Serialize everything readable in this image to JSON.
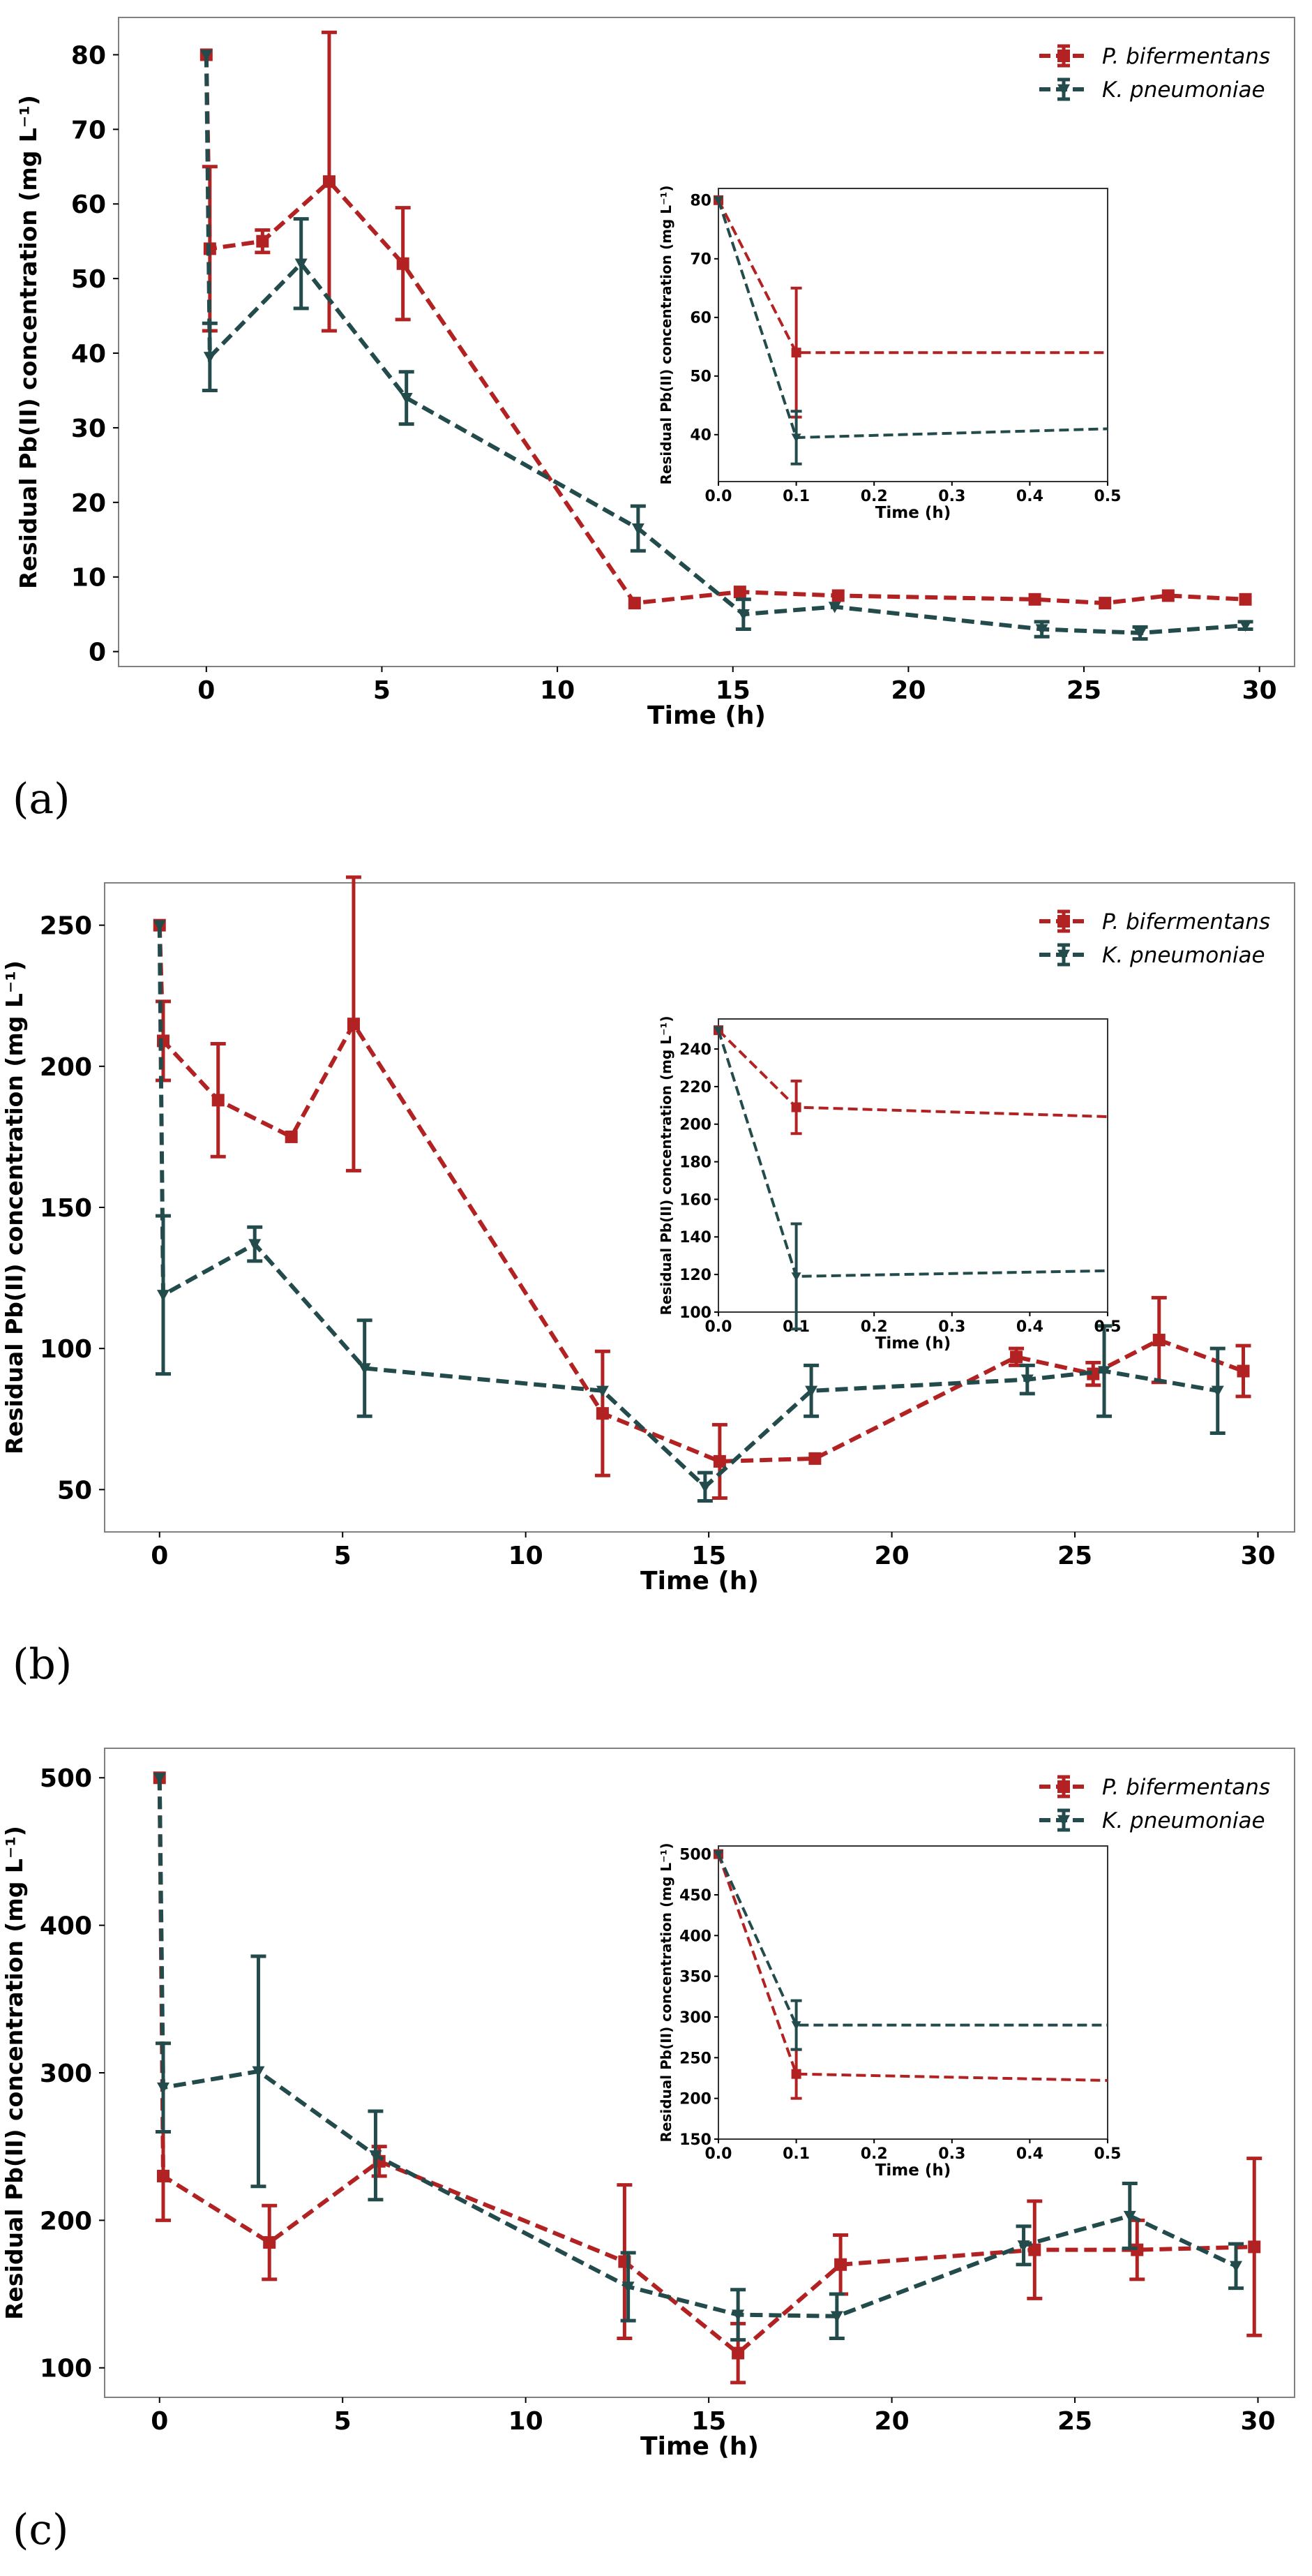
{
  "colors": {
    "pb": "#b22222",
    "kp": "#234b4b",
    "frame": "#808080"
  },
  "chart_data": [
    {
      "type": "line",
      "panel_label": "(a)",
      "xlabel": "Time (h)",
      "ylabel": "Residual Pb(II) concentration (mg L⁻¹)",
      "xlim": [
        -2.5,
        31
      ],
      "ylim": [
        -2,
        85
      ],
      "xticks": [
        0,
        5,
        10,
        15,
        20,
        25,
        30
      ],
      "yticks": [
        0,
        10,
        20,
        30,
        40,
        50,
        60,
        70,
        80
      ],
      "series": [
        {
          "name": "P. bifermentans",
          "marker": "square",
          "color": "#b22222",
          "x": [
            0,
            0.1,
            1.6,
            3.5,
            5.6,
            12.2,
            15.2,
            18,
            23.6,
            25.6,
            27.4,
            29.6
          ],
          "y": [
            80,
            54,
            55,
            63,
            52,
            6.5,
            8,
            7.5,
            7,
            6.5,
            7.5,
            7
          ],
          "err": [
            0,
            11,
            1.5,
            20,
            7.5,
            0,
            0,
            0,
            0,
            0,
            0,
            0
          ]
        },
        {
          "name": "K. pneumoniae",
          "marker": "triangle-down",
          "color": "#234b4b",
          "x": [
            0,
            0.1,
            2.7,
            5.7,
            12.3,
            15.3,
            17.9,
            23.8,
            26.6,
            29.6
          ],
          "y": [
            80,
            39.5,
            52,
            34,
            16.5,
            5,
            6,
            3,
            2.5,
            3.5
          ],
          "err": [
            0,
            4.5,
            6,
            3.5,
            3,
            2,
            0,
            1,
            0.8,
            0.5
          ]
        }
      ],
      "inset": {
        "xlabel": "Time (h)",
        "ylabel": "Residual Pb(II) concentration (mg L⁻¹)",
        "xlim": [
          0,
          0.5
        ],
        "ylim": [
          32,
          82
        ],
        "xticks": [
          "0.0",
          "0.1",
          "0.2",
          "0.3",
          "0.4",
          "0.5"
        ],
        "yticks": [
          40,
          50,
          60,
          70,
          80
        ],
        "series": [
          {
            "name": "P. bifermentans",
            "x": [
              0,
              0.1,
              0.5
            ],
            "y": [
              80,
              54,
              54
            ],
            "err": [
              0,
              11,
              0
            ]
          },
          {
            "name": "K. pneumoniae",
            "x": [
              0,
              0.1,
              0.5
            ],
            "y": [
              80,
              39.5,
              41
            ],
            "err": [
              0,
              4.5,
              0
            ]
          }
        ]
      }
    },
    {
      "type": "line",
      "panel_label": "(b)",
      "xlabel": "Time (h)",
      "ylabel": "Residual Pb(II) concentration (mg L⁻¹)",
      "xlim": [
        -1.5,
        31
      ],
      "ylim": [
        35,
        265
      ],
      "xticks": [
        0,
        5,
        10,
        15,
        20,
        25,
        30
      ],
      "yticks": [
        50,
        100,
        150,
        200,
        250
      ],
      "series": [
        {
          "name": "P. bifermentans",
          "marker": "square",
          "color": "#b22222",
          "x": [
            0,
            0.1,
            1.6,
            3.6,
            5.3,
            12.1,
            15.3,
            17.9,
            23.4,
            25.5,
            27.3,
            29.6
          ],
          "y": [
            250,
            209,
            188,
            175,
            215,
            77,
            60,
            61,
            97,
            91,
            103,
            92
          ],
          "err": [
            0,
            14,
            20,
            0,
            52,
            22,
            13,
            0,
            3,
            4,
            15,
            9
          ]
        },
        {
          "name": "K. pneumoniae",
          "marker": "triangle-down",
          "color": "#234b4b",
          "x": [
            0,
            0.1,
            2.6,
            5.6,
            12.1,
            14.9,
            17.8,
            23.7,
            25.8,
            28.9
          ],
          "y": [
            250,
            119,
            137,
            93,
            85,
            51,
            85,
            89,
            92,
            85
          ],
          "err": [
            0,
            28,
            6,
            17,
            0,
            5,
            9,
            5,
            16,
            15
          ]
        }
      ],
      "inset": {
        "xlabel": "Time (h)",
        "ylabel": "Residual Pb(II) concentration (mg L⁻¹)",
        "xlim": [
          0,
          0.5
        ],
        "ylim": [
          100,
          256
        ],
        "xticks": [
          "0.0",
          "0.1",
          "0.2",
          "0.3",
          "0.4",
          "0.5"
        ],
        "yticks": [
          100,
          120,
          140,
          160,
          180,
          200,
          220,
          240
        ],
        "series": [
          {
            "name": "P. bifermentans",
            "x": [
              0,
              0.1,
              0.5
            ],
            "y": [
              250,
              209,
              204
            ],
            "err": [
              0,
              14,
              0
            ]
          },
          {
            "name": "K. pneumoniae",
            "x": [
              0,
              0.1,
              0.5
            ],
            "y": [
              250,
              119,
              122
            ],
            "err": [
              0,
              28,
              0
            ]
          }
        ]
      }
    },
    {
      "type": "line",
      "panel_label": "(c)",
      "xlabel": "Time (h)",
      "ylabel": "Residual Pb(II) concentration (mg L⁻¹)",
      "xlim": [
        -1.5,
        31
      ],
      "ylim": [
        80,
        520
      ],
      "xticks": [
        0,
        5,
        10,
        15,
        20,
        25,
        30
      ],
      "yticks": [
        100,
        200,
        300,
        400,
        500
      ],
      "series": [
        {
          "name": "P. bifermentans",
          "marker": "square",
          "color": "#b22222",
          "x": [
            0,
            0.1,
            3,
            6,
            12.7,
            15.8,
            18.6,
            23.9,
            26.7,
            29.9
          ],
          "y": [
            500,
            230,
            185,
            240,
            172,
            110,
            170,
            180,
            180,
            182
          ],
          "err": [
            0,
            30,
            25,
            10,
            52,
            20,
            20,
            33,
            20,
            60
          ]
        },
        {
          "name": "K. pneumoniae",
          "marker": "triangle-down",
          "color": "#234b4b",
          "x": [
            0,
            0.1,
            2.7,
            5.9,
            12.8,
            15.8,
            18.5,
            23.6,
            26.5,
            29.4
          ],
          "y": [
            500,
            290,
            301,
            244,
            155,
            136,
            135,
            183,
            203,
            169
          ],
          "err": [
            0,
            30,
            78,
            30,
            23,
            17,
            15,
            13,
            22,
            15
          ]
        }
      ],
      "inset": {
        "xlabel": "Time (h)",
        "ylabel": "Residual Pb(II) concentration (mg L⁻¹)",
        "xlim": [
          0,
          0.5
        ],
        "ylim": [
          150,
          510
        ],
        "xticks": [
          "0.0",
          "0.1",
          "0.2",
          "0.3",
          "0.4",
          "0.5"
        ],
        "yticks": [
          150,
          200,
          250,
          300,
          350,
          400,
          450,
          500
        ],
        "series": [
          {
            "name": "P. bifermentans",
            "x": [
              0,
              0.1,
              0.5
            ],
            "y": [
              500,
              230,
              222
            ],
            "err": [
              0,
              30,
              0
            ]
          },
          {
            "name": "K. pneumoniae",
            "x": [
              0,
              0.1,
              0.5
            ],
            "y": [
              500,
              290,
              290
            ],
            "err": [
              0,
              30,
              0
            ]
          }
        ]
      }
    }
  ]
}
